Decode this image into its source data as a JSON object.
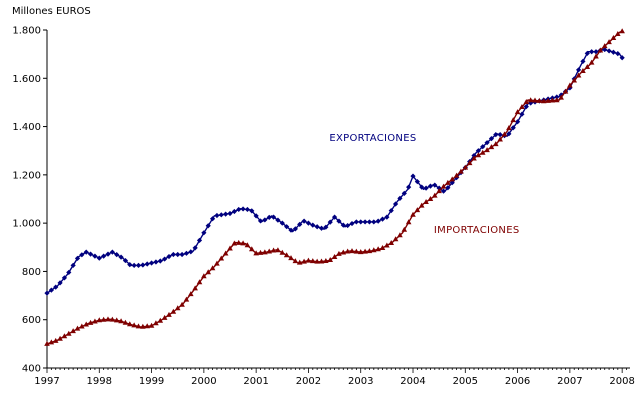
{
  "chart_data": {
    "type": "line",
    "title": "",
    "xlabel": "",
    "ylabel": "Millones EUROS",
    "ylim": [
      400,
      1800
    ],
    "xlim": [
      1997,
      2008.2
    ],
    "grid": false,
    "y_ticks": [
      400,
      600,
      800,
      1000,
      1200,
      1400,
      1600,
      1800
    ],
    "y_tick_labels": [
      "400",
      "600",
      "800",
      "1.000",
      "1.200",
      "1.400",
      "1.600",
      "1.800"
    ],
    "x_ticks": [
      1997,
      1998,
      1999,
      2000,
      2001,
      2002,
      2003,
      2004,
      2005,
      2006,
      2007,
      2008
    ],
    "x_tick_labels": [
      "1997",
      "1998",
      "1999",
      "2000",
      "2001",
      "2002",
      "2003",
      "2004",
      "2005",
      "2006",
      "2007",
      "2008"
    ],
    "series": [
      {
        "name": "EXPORTACIONES",
        "color": "#00007f",
        "marker": "diamond",
        "points": [
          [
            1997.0,
            710
          ],
          [
            1997.2,
            740
          ],
          [
            1997.4,
            790
          ],
          [
            1997.6,
            860
          ],
          [
            1997.75,
            880
          ],
          [
            1998.0,
            855
          ],
          [
            1998.25,
            880
          ],
          [
            1998.45,
            855
          ],
          [
            1998.6,
            825
          ],
          [
            1998.8,
            825
          ],
          [
            1999.0,
            835
          ],
          [
            1999.2,
            845
          ],
          [
            1999.4,
            870
          ],
          [
            1999.6,
            870
          ],
          [
            1999.8,
            885
          ],
          [
            2000.0,
            960
          ],
          [
            2000.2,
            1030
          ],
          [
            2000.5,
            1040
          ],
          [
            2000.7,
            1060
          ],
          [
            2000.9,
            1055
          ],
          [
            2001.1,
            1005
          ],
          [
            2001.3,
            1030
          ],
          [
            2001.5,
            1000
          ],
          [
            2001.7,
            965
          ],
          [
            2001.9,
            1010
          ],
          [
            2002.1,
            990
          ],
          [
            2002.3,
            975
          ],
          [
            2002.5,
            1025
          ],
          [
            2002.7,
            985
          ],
          [
            2002.9,
            1005
          ],
          [
            2003.1,
            1005
          ],
          [
            2003.3,
            1005
          ],
          [
            2003.5,
            1025
          ],
          [
            2003.7,
            1090
          ],
          [
            2003.9,
            1140
          ],
          [
            2004.0,
            1195
          ],
          [
            2004.2,
            1140
          ],
          [
            2004.4,
            1160
          ],
          [
            2004.6,
            1130
          ],
          [
            2004.8,
            1180
          ],
          [
            2005.0,
            1230
          ],
          [
            2005.2,
            1290
          ],
          [
            2005.4,
            1330
          ],
          [
            2005.6,
            1370
          ],
          [
            2005.8,
            1360
          ],
          [
            2006.0,
            1420
          ],
          [
            2006.2,
            1495
          ],
          [
            2006.5,
            1510
          ],
          [
            2006.8,
            1525
          ],
          [
            2007.0,
            1560
          ],
          [
            2007.2,
            1650
          ],
          [
            2007.35,
            1710
          ],
          [
            2007.5,
            1710
          ],
          [
            2007.65,
            1720
          ],
          [
            2007.8,
            1710
          ],
          [
            2007.95,
            1700
          ],
          [
            2008.0,
            1685
          ]
        ]
      },
      {
        "name": "IMPORTACIONES",
        "color": "#7f0000",
        "marker": "triangle",
        "points": [
          [
            1997.0,
            500
          ],
          [
            1997.2,
            515
          ],
          [
            1997.4,
            540
          ],
          [
            1997.6,
            565
          ],
          [
            1997.8,
            585
          ],
          [
            1998.0,
            598
          ],
          [
            1998.2,
            602
          ],
          [
            1998.4,
            595
          ],
          [
            1998.6,
            580
          ],
          [
            1998.8,
            570
          ],
          [
            1999.0,
            575
          ],
          [
            1999.2,
            600
          ],
          [
            1999.4,
            630
          ],
          [
            1999.6,
            665
          ],
          [
            1999.8,
            720
          ],
          [
            2000.0,
            780
          ],
          [
            2000.2,
            820
          ],
          [
            2000.4,
            870
          ],
          [
            2000.6,
            920
          ],
          [
            2000.8,
            915
          ],
          [
            2001.0,
            875
          ],
          [
            2001.2,
            880
          ],
          [
            2001.4,
            890
          ],
          [
            2001.6,
            865
          ],
          [
            2001.8,
            835
          ],
          [
            2002.0,
            845
          ],
          [
            2002.2,
            840
          ],
          [
            2002.4,
            845
          ],
          [
            2002.6,
            875
          ],
          [
            2002.8,
            885
          ],
          [
            2003.0,
            880
          ],
          [
            2003.2,
            885
          ],
          [
            2003.4,
            895
          ],
          [
            2003.6,
            920
          ],
          [
            2003.8,
            960
          ],
          [
            2004.0,
            1035
          ],
          [
            2004.2,
            1080
          ],
          [
            2004.4,
            1110
          ],
          [
            2004.6,
            1155
          ],
          [
            2004.8,
            1190
          ],
          [
            2005.0,
            1230
          ],
          [
            2005.2,
            1275
          ],
          [
            2005.4,
            1300
          ],
          [
            2005.6,
            1330
          ],
          [
            2005.8,
            1380
          ],
          [
            2006.0,
            1460
          ],
          [
            2006.2,
            1510
          ],
          [
            2006.5,
            1505
          ],
          [
            2006.8,
            1510
          ],
          [
            2007.0,
            1570
          ],
          [
            2007.2,
            1620
          ],
          [
            2007.4,
            1660
          ],
          [
            2007.6,
            1720
          ],
          [
            2007.8,
            1760
          ],
          [
            2007.95,
            1790
          ],
          [
            2008.0,
            1795
          ]
        ]
      }
    ],
    "annotations": [
      {
        "text": "EXPORTACIONES",
        "x": 2002.4,
        "y": 1340,
        "series": "EXPORTACIONES"
      },
      {
        "text": "IMPORTACIONES",
        "x": 2004.4,
        "y": 960,
        "series": "IMPORTACIONES"
      }
    ]
  }
}
